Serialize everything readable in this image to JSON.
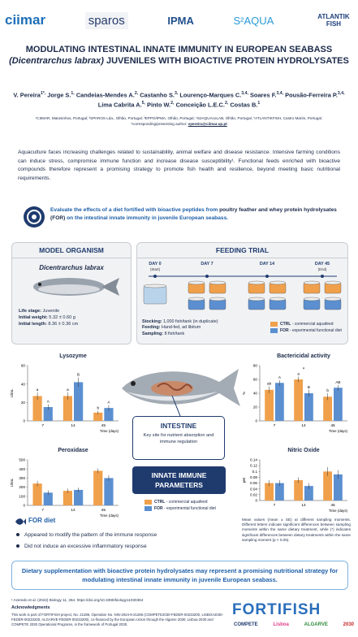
{
  "header": {
    "logos": [
      "ciimar",
      "sparos",
      "IPMA",
      "S²AQUA",
      "ATLANTIK FISH"
    ]
  },
  "title": {
    "line1": "MODULATING INTESTINAL INNATE IMMUNITY IN EUROPEAN SEABASS",
    "species": "(Dicentrarchus labrax)",
    "line2": "JUVENILES WITH BIOACTIVE PROTEIN HYDROLYSATES"
  },
  "authors": [
    {
      "name": "V. Pereira",
      "sup": "1*,"
    },
    {
      "name": "Jorge S.",
      "sup": "1,"
    },
    {
      "name": "Candeias-Mendes A.",
      "sup": "2,"
    },
    {
      "name": "Castanho S.",
      "sup": "3,"
    },
    {
      "name": "Lourenço-Marques C.",
      "sup": "3,4,"
    },
    {
      "name": "Soares F.",
      "sup": "3,4,"
    },
    {
      "name": "Pousão-Ferreira P.",
      "sup": "3,4,"
    },
    {
      "name": "Lima Cabrita A.",
      "sup": "5,"
    },
    {
      "name": "Pinto W.",
      "sup": "2,"
    },
    {
      "name": "Conceição L.E.C.",
      "sup": "2,"
    },
    {
      "name": "Costas B.",
      "sup": "1"
    }
  ],
  "affiliations": "¹CIIMAR, Matosinhos, Portugal; ²SPAROS Lda., Olhão, Portugal; ³EPPO/IPMA, Olhão, Portugal; ⁴S2AQUAcoLAB, Olhão, Portugal; ⁵ATLANTIKFISH, Castro Marim, Portugal.",
  "corresponding": {
    "label": "*corresponding/presenting author: ",
    "email": "vpereira@ciimar.up.pt"
  },
  "intro": "Aquaculture faces increasing challenges related to sustainability, animal welfare and disease resistance. Intensive farming conditions can induce stress, compromise immune function and increase disease susceptibility¹. Functional feeds enriched with bioactive compounds therefore represent a promising strategy to promote fish health and resilience, beyond meeting basic nutritional requirements.",
  "objective": {
    "start": "Evaluate the effects of a diet fortified with bioactive peptides from ",
    "highlight": "poultry feather and whey protein hydrolysates (FOR)",
    "end": " on the intestinal innate immunity in juvenile European seabass."
  },
  "model": {
    "heading": "MODEL ORGANISM",
    "species": "Dicentrarchus labrax",
    "rows": [
      {
        "label": "Life stage: ",
        "value": "Juvenile"
      },
      {
        "label": "Initial weight: ",
        "value": "5.32 ± 0.60 g"
      },
      {
        "label": "Initial length: ",
        "value": "8.36 ± 0.36 cm"
      }
    ]
  },
  "trial": {
    "heading": "FEEDING TRIAL",
    "days": [
      {
        "day": "DAY 0",
        "note": "(Start)"
      },
      {
        "day": "DAY 7",
        "note": null
      },
      {
        "day": "DAY 14",
        "note": null
      },
      {
        "day": "DAY 45",
        "note": "(End)"
      }
    ],
    "rows": [
      {
        "label": "Stocking: ",
        "value": "1,000 fish/tank (in duplicate)"
      },
      {
        "label": "Feeding: ",
        "value": "Hand-fed, ad libitum"
      },
      {
        "label": "Sampling: ",
        "value": "8 fish/tank"
      }
    ],
    "legend": [
      {
        "key": "CTRL",
        "text": " - commercial aquafeed",
        "color": "#f0a04b"
      },
      {
        "key": "FOR",
        "text": " - experimental functional diet",
        "color": "#5b8fd0"
      }
    ]
  },
  "charts": [
    {
      "type": "bar",
      "title": "Lysozyme",
      "y_label": "U/mL",
      "x_label": "Time (days)",
      "categories": [
        "7",
        "14",
        "45"
      ],
      "ylim": [
        0,
        60
      ],
      "yticks": [
        0,
        20,
        40,
        60
      ],
      "series": [
        {
          "color": "#f0a04b",
          "values": [
            27,
            27,
            9
          ],
          "errors": [
            4,
            4,
            2
          ],
          "letters": [
            "a",
            "a",
            "b"
          ]
        },
        {
          "color": "#5b8fd0",
          "values": [
            15,
            42,
            14
          ],
          "errors": [
            3,
            5,
            3
          ],
          "letters": [
            "A",
            "B",
            "A"
          ]
        }
      ],
      "significance": [
        null,
        null,
        null
      ]
    },
    {
      "type": "bar",
      "title": "Peroxidase",
      "y_label": "U/mL",
      "x_label": "Time (days)",
      "categories": [
        "7",
        "14",
        "45"
      ],
      "ylim": [
        0,
        500
      ],
      "yticks": [
        0,
        100,
        200,
        300,
        400,
        500
      ],
      "series": [
        {
          "color": "#f0a04b",
          "values": [
            240,
            160,
            380
          ],
          "errors": [
            30,
            25,
            25
          ],
          "letters": [
            null,
            null,
            null
          ]
        },
        {
          "color": "#5b8fd0",
          "values": [
            140,
            170,
            300
          ],
          "errors": [
            25,
            25,
            30
          ],
          "letters": [
            null,
            null,
            null
          ]
        }
      ],
      "significance": [
        null,
        null,
        null
      ]
    },
    {
      "type": "bar",
      "title": "Bactericidal activity",
      "y_label": "%",
      "x_label": "Time (days)",
      "categories": [
        "7",
        "14",
        "45"
      ],
      "ylim": [
        0,
        80
      ],
      "yticks": [
        0,
        20,
        40,
        60,
        80
      ],
      "series": [
        {
          "color": "#f0a04b",
          "values": [
            45,
            60,
            35
          ],
          "errors": [
            5,
            4,
            5
          ],
          "letters": [
            "ab",
            "a",
            "b"
          ]
        },
        {
          "color": "#5b8fd0",
          "values": [
            55,
            40,
            48
          ],
          "errors": [
            4,
            5,
            4
          ],
          "letters": [
            "A",
            "B",
            "AB"
          ]
        }
      ],
      "significance": [
        null,
        "*",
        null
      ]
    },
    {
      "type": "bar",
      "title": "Nitric Oxide",
      "y_label": "µM",
      "x_label": "Time (days)",
      "categories": [
        "7",
        "14",
        "45"
      ],
      "ylim": [
        0,
        0.14
      ],
      "yticks": [
        0,
        0.02,
        0.04,
        0.06,
        0.08,
        0.1,
        0.12,
        0.14
      ],
      "series": [
        {
          "color": "#f0a04b",
          "values": [
            0.06,
            0.07,
            0.1
          ],
          "errors": [
            0.01,
            0.01,
            0.015
          ],
          "letters": [
            null,
            null,
            null
          ]
        },
        {
          "color": "#5b8fd0",
          "values": [
            0.06,
            0.05,
            0.09
          ],
          "errors": [
            0.01,
            0.01,
            0.015
          ],
          "letters": [
            null,
            null,
            null
          ]
        }
      ],
      "significance": [
        null,
        null,
        null
      ]
    }
  ],
  "intestine": {
    "heading": "INTESTINE",
    "text": "Key site for nutrient absorption and immune regulation"
  },
  "innate": "INNATE IMMUNE PARAMETERS",
  "chart_legend": [
    {
      "key": "CTRL",
      "text": " - commercial aquafeed"
    },
    {
      "key": "FOR",
      "text": " - experimental functional diet"
    }
  ],
  "note": "Mean values (mean ± SE) at different sampling moments. Different letters indicate significant differences between sampling moments within the same dietary treatment, while (*) indicates significant differences between dietary treatments within the same sampling moment (p < 0.05).",
  "for_diet": {
    "heading": "FOR diet",
    "bullets": [
      "Appeared to modify the pattern of the immune response",
      "Did not induce an excessive inflammatory response"
    ]
  },
  "conclusion": "Dietary supplementation with bioactive protein hydrolysates may represent a promising nutritional strategy for modulating intestinal innate immunity in juvenile European seabass.",
  "reference": "¹ Azeredo et al. (2022) Biology 11, 364. https://doi.org/10.3390/biology11030364",
  "acknowledgments": {
    "heading": "Acknowledgments",
    "text": "This work is part of FORTIFISH project, No. 21286, Operation No. NIN-2024-9-21286 (COMPETE2030-FEDER-00233200, LISBOA2030-FEDER-00233200, ALGARVE-FEDER-00233200), co-financed by the European Union through the Algarve 2030, Lisboa 2030 and COMPETE 2030 Operational Programs, in the framework of Portugal 2030."
  },
  "footer": {
    "project": "FORTIFISH",
    "funders": [
      "COMPETE",
      "Lisboa",
      "ALGARVE",
      "2030"
    ]
  }
}
